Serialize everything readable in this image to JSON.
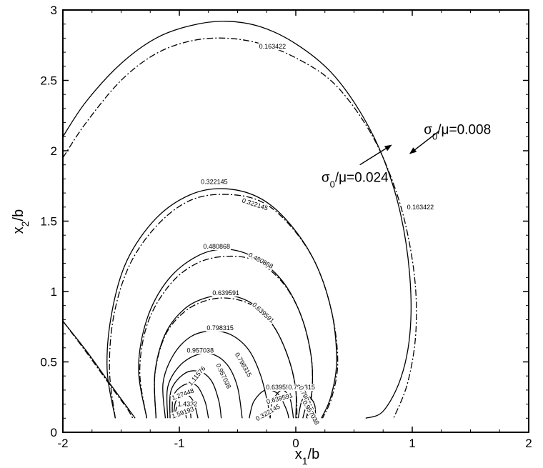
{
  "chart_data": {
    "type": "line",
    "title": "",
    "xlabel": "x",
    "xlabel_sub": "1",
    "xlabel_suffix": "/b",
    "ylabel": "x",
    "ylabel_sub": "2",
    "ylabel_suffix": "/b",
    "xlim": [
      -2,
      2
    ],
    "ylim": [
      0,
      3
    ],
    "xticks": [
      "-2",
      "-1",
      "0",
      "1",
      "2"
    ],
    "yticks": [
      "0",
      "0.5",
      "1",
      "1.5",
      "2",
      "2.5",
      "3"
    ],
    "grid": false,
    "series": [
      {
        "style": "solid",
        "contours": [
          {
            "level": "0.163422",
            "points": [
              [
                -2.0,
                2.1
              ],
              [
                -1.8,
                2.35
              ],
              [
                -1.5,
                2.62
              ],
              [
                -1.2,
                2.8
              ],
              [
                -0.9,
                2.89
              ],
              [
                -0.6,
                2.92
              ],
              [
                -0.3,
                2.88
              ],
              [
                0.0,
                2.76
              ],
              [
                0.3,
                2.56
              ],
              [
                0.55,
                2.28
              ],
              [
                0.75,
                1.95
              ],
              [
                0.9,
                1.55
              ],
              [
                0.98,
                1.1
              ],
              [
                0.98,
                0.7
              ],
              [
                0.9,
                0.38
              ],
              [
                0.75,
                0.15
              ],
              [
                0.6,
                0.1
              ]
            ]
          },
          {
            "level": "0.163422",
            "points": [
              [
                -2.0,
                0.79
              ],
              [
                -1.8,
                0.58
              ],
              [
                -1.6,
                0.35
              ],
              [
                -1.45,
                0.18
              ],
              [
                -1.38,
                0.1
              ]
            ]
          },
          {
            "level": "0.322145",
            "points": [
              [
                -1.55,
                0.1
              ],
              [
                -1.62,
                0.45
              ],
              [
                -1.58,
                0.85
              ],
              [
                -1.45,
                1.22
              ],
              [
                -1.2,
                1.52
              ],
              [
                -0.9,
                1.69
              ],
              [
                -0.6,
                1.73
              ],
              [
                -0.3,
                1.66
              ],
              [
                -0.05,
                1.48
              ],
              [
                0.17,
                1.2
              ],
              [
                0.31,
                0.85
              ],
              [
                0.35,
                0.5
              ],
              [
                0.3,
                0.25
              ],
              [
                0.22,
                0.1
              ]
            ]
          },
          {
            "level": "0.480868",
            "points": [
              [
                -1.28,
                0.1
              ],
              [
                -1.35,
                0.45
              ],
              [
                -1.28,
                0.8
              ],
              [
                -1.1,
                1.08
              ],
              [
                -0.85,
                1.25
              ],
              [
                -0.6,
                1.3
              ],
              [
                -0.35,
                1.24
              ],
              [
                -0.12,
                1.08
              ],
              [
                0.04,
                0.84
              ],
              [
                0.13,
                0.55
              ],
              [
                0.14,
                0.3
              ],
              [
                0.09,
                0.1
              ]
            ]
          },
          {
            "level": "0.639591",
            "points": [
              [
                -1.2,
                0.1
              ],
              [
                -1.21,
                0.42
              ],
              [
                -1.12,
                0.7
              ],
              [
                -0.95,
                0.88
              ],
              [
                -0.75,
                0.96
              ],
              [
                -0.55,
                0.97
              ],
              [
                -0.35,
                0.9
              ],
              [
                -0.18,
                0.74
              ],
              [
                -0.06,
                0.52
              ],
              [
                0.0,
                0.3
              ],
              [
                0.0,
                0.1
              ]
            ]
          },
          {
            "level": "0.798315",
            "points": [
              [
                -1.12,
                0.1
              ],
              [
                -1.14,
                0.35
              ],
              [
                -1.05,
                0.55
              ],
              [
                -0.9,
                0.68
              ],
              [
                -0.72,
                0.72
              ],
              [
                -0.55,
                0.69
              ],
              [
                -0.4,
                0.58
              ],
              [
                -0.3,
                0.4
              ],
              [
                -0.24,
                0.2
              ],
              [
                -0.22,
                0.1
              ]
            ]
          },
          {
            "level": "0.957038",
            "points": [
              [
                -1.1,
                0.1
              ],
              [
                -1.1,
                0.32
              ],
              [
                -1.0,
                0.47
              ],
              [
                -0.85,
                0.55
              ],
              [
                -0.7,
                0.55
              ],
              [
                -0.58,
                0.47
              ],
              [
                -0.5,
                0.32
              ],
              [
                -0.46,
                0.1
              ]
            ]
          },
          {
            "level": "1.11576",
            "points": [
              [
                -1.08,
                0.1
              ],
              [
                -1.07,
                0.3
              ],
              [
                -0.95,
                0.42
              ],
              [
                -0.82,
                0.43
              ],
              [
                -0.72,
                0.36
              ],
              [
                -0.66,
                0.22
              ],
              [
                -0.64,
                0.1
              ]
            ]
          },
          {
            "level": "1.27448",
            "points": [
              [
                -1.06,
                0.1
              ],
              [
                -1.05,
                0.26
              ],
              [
                -0.95,
                0.34
              ],
              [
                -0.85,
                0.33
              ],
              [
                -0.78,
                0.22
              ],
              [
                -0.75,
                0.1
              ]
            ]
          },
          {
            "level": "1.4332",
            "points": [
              [
                -1.05,
                0.1
              ],
              [
                -1.03,
                0.22
              ],
              [
                -0.95,
                0.27
              ],
              [
                -0.88,
                0.22
              ],
              [
                -0.84,
                0.1
              ]
            ]
          },
          {
            "level": "1.59193",
            "points": [
              [
                -1.04,
                0.1
              ],
              [
                -1.02,
                0.18
              ],
              [
                -0.96,
                0.2
              ],
              [
                -0.91,
                0.15
              ],
              [
                -0.9,
                0.1
              ]
            ]
          },
          {
            "level": "1.75065",
            "points": [
              [
                -1.03,
                0.1
              ],
              [
                -1.0,
                0.15
              ],
              [
                -0.95,
                0.13
              ],
              [
                -0.94,
                0.1
              ]
            ]
          },
          {
            "level": "0.639591",
            "points": [
              [
                -0.22,
                0.1
              ],
              [
                -0.2,
                0.22
              ],
              [
                -0.12,
                0.3
              ],
              [
                -0.05,
                0.24
              ],
              [
                -0.02,
                0.1
              ]
            ]
          },
          {
            "level": "0.322145",
            "points": [
              [
                -0.4,
                0.1
              ],
              [
                -0.36,
                0.22
              ],
              [
                -0.26,
                0.3
              ],
              [
                -0.15,
                0.27
              ],
              [
                -0.08,
                0.16
              ],
              [
                -0.06,
                0.1
              ]
            ]
          },
          {
            "level": "0.798315",
            "points": [
              [
                0.02,
                0.1
              ],
              [
                0.05,
                0.22
              ],
              [
                0.1,
                0.26
              ],
              [
                0.16,
                0.2
              ],
              [
                0.17,
                0.1
              ]
            ]
          },
          {
            "level": "0.957038",
            "points": [
              [
                0.06,
                0.1
              ],
              [
                0.09,
                0.18
              ],
              [
                0.13,
                0.17
              ],
              [
                0.14,
                0.1
              ]
            ]
          }
        ]
      },
      {
        "style": "dashdot",
        "contours": [
          {
            "level": "0.163422",
            "points": [
              [
                -2.0,
                1.95
              ],
              [
                -1.8,
                2.2
              ],
              [
                -1.5,
                2.5
              ],
              [
                -1.2,
                2.69
              ],
              [
                -0.9,
                2.78
              ],
              [
                -0.6,
                2.8
              ],
              [
                -0.3,
                2.76
              ],
              [
                0.0,
                2.66
              ],
              [
                0.3,
                2.5
              ],
              [
                0.55,
                2.25
              ],
              [
                0.75,
                1.95
              ],
              [
                0.92,
                1.55
              ],
              [
                1.02,
                1.1
              ],
              [
                1.03,
                0.7
              ],
              [
                0.96,
                0.35
              ],
              [
                0.84,
                0.1
              ]
            ]
          },
          {
            "level": "0.163422",
            "points": [
              [
                -2.0,
                0.79
              ],
              [
                -1.8,
                0.57
              ],
              [
                -1.6,
                0.34
              ],
              [
                -1.45,
                0.17
              ],
              [
                -1.4,
                0.1
              ]
            ]
          },
          {
            "level": "0.322145",
            "points": [
              [
                -1.55,
                0.1
              ],
              [
                -1.6,
                0.45
              ],
              [
                -1.56,
                0.84
              ],
              [
                -1.42,
                1.2
              ],
              [
                -1.18,
                1.48
              ],
              [
                -0.9,
                1.65
              ],
              [
                -0.6,
                1.69
              ],
              [
                -0.3,
                1.64
              ],
              [
                -0.05,
                1.47
              ],
              [
                0.17,
                1.2
              ],
              [
                0.31,
                0.85
              ],
              [
                0.36,
                0.5
              ],
              [
                0.31,
                0.25
              ],
              [
                0.23,
                0.1
              ]
            ]
          },
          {
            "level": "0.480868",
            "points": [
              [
                -1.28,
                0.1
              ],
              [
                -1.34,
                0.44
              ],
              [
                -1.27,
                0.78
              ],
              [
                -1.08,
                1.05
              ],
              [
                -0.85,
                1.2
              ],
              [
                -0.6,
                1.25
              ],
              [
                -0.35,
                1.22
              ],
              [
                -0.12,
                1.07
              ],
              [
                0.04,
                0.84
              ],
              [
                0.13,
                0.55
              ],
              [
                0.14,
                0.3
              ],
              [
                0.1,
                0.1
              ]
            ]
          },
          {
            "level": "0.639591",
            "points": [
              [
                -1.2,
                0.1
              ],
              [
                -1.21,
                0.41
              ],
              [
                -1.12,
                0.69
              ],
              [
                -0.95,
                0.86
              ],
              [
                -0.75,
                0.94
              ],
              [
                -0.55,
                0.95
              ],
              [
                -0.35,
                0.89
              ],
              [
                -0.18,
                0.74
              ],
              [
                -0.06,
                0.52
              ],
              [
                0.0,
                0.3
              ],
              [
                0.01,
                0.1
              ]
            ]
          }
        ]
      }
    ],
    "contour_labels": [
      {
        "text": "0.163422",
        "x": -0.2,
        "y": 2.74,
        "angle": 0
      },
      {
        "text": "0.163422",
        "x": 1.07,
        "y": 1.6,
        "angle": 0
      },
      {
        "text": "0.322145",
        "x": -0.7,
        "y": 1.78,
        "angle": 0
      },
      {
        "text": "0.322145",
        "x": -0.35,
        "y": 1.62,
        "angle": 18
      },
      {
        "text": "0.480868",
        "x": -0.68,
        "y": 1.32,
        "angle": 0
      },
      {
        "text": "0.480868",
        "x": -0.3,
        "y": 1.22,
        "angle": 28
      },
      {
        "text": "0.639591",
        "x": -0.6,
        "y": 0.99,
        "angle": 0
      },
      {
        "text": "0.639591",
        "x": -0.28,
        "y": 0.85,
        "angle": 42
      },
      {
        "text": "0.798315",
        "x": -0.65,
        "y": 0.74,
        "angle": 0
      },
      {
        "text": "0.798315",
        "x": -0.45,
        "y": 0.48,
        "angle": 60
      },
      {
        "text": "0.957038",
        "x": -0.82,
        "y": 0.58,
        "angle": 0
      },
      {
        "text": "0.957038",
        "x": -0.62,
        "y": 0.4,
        "angle": 65
      },
      {
        "text": "1.11576",
        "x": -0.85,
        "y": 0.4,
        "angle": -50
      },
      {
        "text": "1.27448",
        "x": -0.97,
        "y": 0.27,
        "angle": -20
      },
      {
        "text": "1.4332",
        "x": -0.93,
        "y": 0.2,
        "angle": 0
      },
      {
        "text": "1.59193",
        "x": -0.97,
        "y": 0.14,
        "angle": -20
      },
      {
        "text": "0.639591",
        "x": -0.14,
        "y": 0.32,
        "angle": 0
      },
      {
        "text": "0.639591",
        "x": -0.14,
        "y": 0.24,
        "angle": -15
      },
      {
        "text": "0.798315",
        "x": 0.05,
        "y": 0.32,
        "angle": 0
      },
      {
        "text": "0.798315",
        "x": 0.09,
        "y": 0.24,
        "angle": 65
      },
      {
        "text": "0.322145",
        "x": -0.24,
        "y": 0.14,
        "angle": -30
      },
      {
        "text": "0.957038",
        "x": 0.13,
        "y": 0.14,
        "angle": 60
      }
    ],
    "annotations": [
      {
        "text_main": "σ",
        "sub": "0",
        "text_rest": "/μ=0.024",
        "text_x": 0.22,
        "text_y": 1.78,
        "arrow_tip": [
          0.82,
          2.04
        ],
        "arrow_from": [
          0.55,
          1.9
        ]
      },
      {
        "text_main": "σ",
        "sub": "0",
        "text_rest": "/μ=0.008",
        "text_x": 1.1,
        "text_y": 2.12,
        "arrow_tip": [
          0.98,
          1.98
        ],
        "arrow_from": [
          1.23,
          2.14
        ]
      }
    ]
  }
}
